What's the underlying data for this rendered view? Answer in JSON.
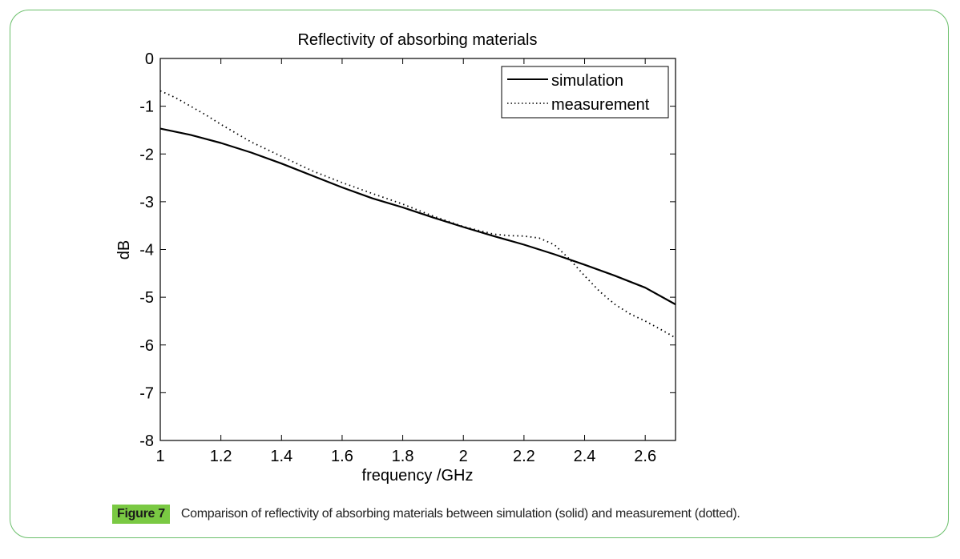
{
  "figure": {
    "label": "Figure 7",
    "caption": "Comparison of reflectivity of absorbing materials between simulation (solid) and measurement (dotted).",
    "border_color": "#6bbf6b",
    "label_color": "#7ac943"
  },
  "chart_data": {
    "type": "line",
    "title": "Reflectivity of absorbing materials",
    "xlabel": "frequency /GHz",
    "ylabel": "dB",
    "xlim": [
      1,
      2.7
    ],
    "ylim": [
      -8,
      0
    ],
    "xticks": [
      1,
      1.2,
      1.4,
      1.6,
      1.8,
      2,
      2.2,
      2.4,
      2.6
    ],
    "xtick_labels": [
      "1",
      "1.2",
      "1.4",
      "1.6",
      "1.8",
      "2",
      "2.2",
      "2.4",
      "2.6"
    ],
    "yticks": [
      0,
      -1,
      -2,
      -3,
      -4,
      -5,
      -6,
      -7,
      -8
    ],
    "ytick_labels": [
      "0",
      "-1",
      "-2",
      "-3",
      "-4",
      "-5",
      "-6",
      "-7",
      "-8"
    ],
    "grid": false,
    "legend_position": "top-right",
    "series": [
      {
        "name": "simulation",
        "style": "solid",
        "x": [
          1.0,
          1.1,
          1.2,
          1.3,
          1.4,
          1.5,
          1.6,
          1.7,
          1.8,
          1.9,
          2.0,
          2.1,
          2.2,
          2.3,
          2.4,
          2.5,
          2.6,
          2.7
        ],
        "y": [
          -1.47,
          -1.6,
          -1.77,
          -1.97,
          -2.2,
          -2.45,
          -2.7,
          -2.93,
          -3.12,
          -3.33,
          -3.53,
          -3.72,
          -3.9,
          -4.1,
          -4.32,
          -4.55,
          -4.8,
          -5.15
        ]
      },
      {
        "name": "measurement",
        "style": "dotted",
        "x": [
          1.0,
          1.05,
          1.1,
          1.15,
          1.2,
          1.3,
          1.4,
          1.5,
          1.6,
          1.7,
          1.8,
          1.9,
          2.0,
          2.1,
          2.15,
          2.2,
          2.25,
          2.3,
          2.35,
          2.4,
          2.45,
          2.5,
          2.55,
          2.6,
          2.65,
          2.7
        ],
        "y": [
          -0.68,
          -0.82,
          -1.0,
          -1.18,
          -1.38,
          -1.75,
          -2.05,
          -2.35,
          -2.6,
          -2.83,
          -3.05,
          -3.3,
          -3.52,
          -3.68,
          -3.71,
          -3.72,
          -3.76,
          -3.9,
          -4.2,
          -4.55,
          -4.88,
          -5.15,
          -5.35,
          -5.5,
          -5.67,
          -5.85
        ]
      }
    ]
  }
}
